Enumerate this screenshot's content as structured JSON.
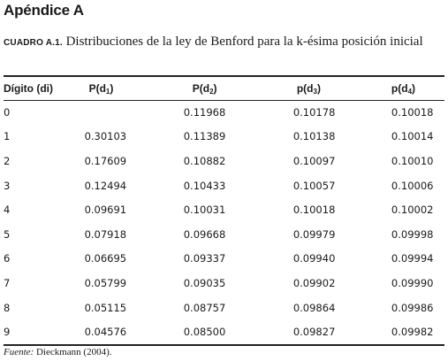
{
  "heading": "Apéndice A",
  "caption": {
    "label": "CUADRO A.1.",
    "text": "Distribuciones de la ley de Benford para la k-ésima posición inicial"
  },
  "table": {
    "headers": [
      {
        "text": "Dígito (di)",
        "sub": ""
      },
      {
        "text": "P(d",
        "sub": "1",
        "close": ")"
      },
      {
        "text": "P(d",
        "sub": "2",
        "close": ")"
      },
      {
        "text": "p(d",
        "sub": "3",
        "close": ")"
      },
      {
        "text": "p(d",
        "sub": "4",
        "close": ")"
      }
    ],
    "rows": [
      [
        "0",
        "",
        "0.11968",
        "0.10178",
        "0.10018"
      ],
      [
        "1",
        "0.30103",
        "0.11389",
        "0.10138",
        "0.10014"
      ],
      [
        "2",
        "0.17609",
        "0.10882",
        "0.10097",
        "0.10010"
      ],
      [
        "3",
        "0.12494",
        "0.10433",
        "0.10057",
        "0.10006"
      ],
      [
        "4",
        "0.09691",
        "0.10031",
        "0.10018",
        "0.10002"
      ],
      [
        "5",
        "0.07918",
        "0.09668",
        "0.09979",
        "0.09998"
      ],
      [
        "6",
        "0.06695",
        "0.09337",
        "0.09940",
        "0.09994"
      ],
      [
        "7",
        "0.05799",
        "0.09035",
        "0.09902",
        "0.09990"
      ],
      [
        "8",
        "0.05115",
        "0.08757",
        "0.09864",
        "0.09986"
      ],
      [
        "9",
        "0.04576",
        "0.08500",
        "0.09827",
        "0.09982"
      ]
    ]
  },
  "source": {
    "label": "Fuente:",
    "text": "Dieckmann (2004)."
  }
}
